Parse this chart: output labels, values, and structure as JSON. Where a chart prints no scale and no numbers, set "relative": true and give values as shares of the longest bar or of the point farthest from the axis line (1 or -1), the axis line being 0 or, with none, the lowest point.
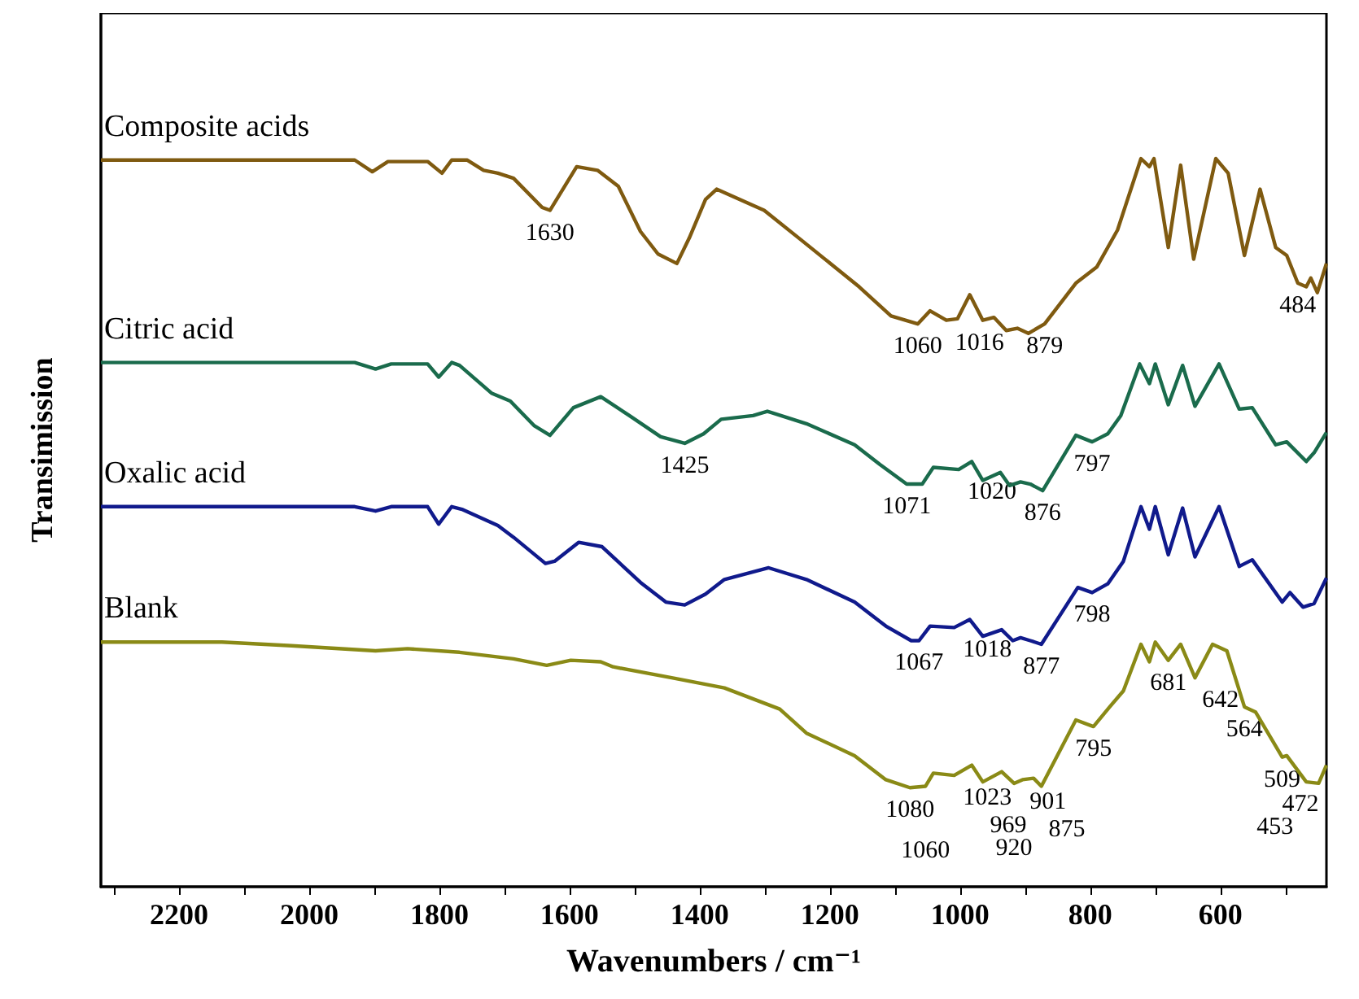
{
  "chart_data": {
    "type": "line",
    "relative": true,
    "xlabel": "Wavenumbers / cm⁻¹",
    "ylabel": "Transimission",
    "grid": false,
    "xlim": [
      2320,
      437
    ],
    "xticks": [
      {
        "value": 2300,
        "label": null
      },
      2200,
      {
        "value": 2100,
        "label": null
      },
      2000,
      {
        "value": 1900,
        "label": null
      },
      1800,
      {
        "value": 1700,
        "label": null
      },
      1600,
      {
        "value": 1500,
        "label": null
      },
      1400,
      {
        "value": 1300,
        "label": null
      },
      1200,
      {
        "value": 1100,
        "label": null
      },
      1000,
      {
        "value": 900,
        "label": null
      },
      800,
      {
        "value": 700,
        "label": null
      },
      600,
      {
        "value": 500,
        "label": null
      }
    ],
    "series": [
      {
        "name": "Composite acids",
        "color": "#7f5a10",
        "x": [
          2320,
          1930,
          1903,
          1879,
          1818,
          1796,
          1781,
          1757,
          1732,
          1710,
          1686,
          1642,
          1630,
          1589,
          1557,
          1525,
          1491,
          1464,
          1435,
          1416,
          1391,
          1374,
          1301,
          1245,
          1155,
          1106,
          1065,
          1046,
          1021,
          1004,
          985,
          965,
          948,
          929,
          912,
          895,
          870,
          822,
          790,
          758,
          722,
          709,
          702,
          680,
          661,
          641,
          607,
          588,
          563,
          539,
          515,
          498,
          481,
          468,
          461,
          451,
          437
        ],
        "values": [
          0.998,
          0.998,
          0.982,
          0.996,
          0.996,
          0.98,
          0.998,
          0.998,
          0.984,
          0.98,
          0.973,
          0.933,
          0.929,
          0.989,
          0.984,
          0.962,
          0.9,
          0.869,
          0.856,
          0.891,
          0.944,
          0.958,
          0.929,
          0.889,
          0.824,
          0.784,
          0.773,
          0.791,
          0.778,
          0.78,
          0.813,
          0.778,
          0.782,
          0.764,
          0.767,
          0.76,
          0.773,
          0.829,
          0.851,
          0.902,
          1,
          0.989,
          1,
          0.878,
          0.991,
          0.862,
          1,
          0.98,
          0.867,
          0.958,
          0.878,
          0.867,
          0.829,
          0.824,
          0.836,
          0.816,
          0.856
        ]
      },
      {
        "name": "Citric acid",
        "color": "#1a6b4c",
        "x": [
          2320,
          1930,
          1898,
          1874,
          1818,
          1801,
          1781,
          1769,
          1720,
          1691,
          1654,
          1630,
          1594,
          1552,
          1508,
          1460,
          1423,
          1394,
          1367,
          1318,
          1296,
          1236,
          1162,
          1123,
          1082,
          1058,
          1041,
          1002,
          982,
          965,
          938,
          924,
          907,
          892,
          873,
          822,
          797,
          773,
          753,
          724,
          709,
          700,
          680,
          658,
          639,
          602,
          571,
          551,
          515,
          498,
          468,
          456,
          437
        ],
        "values": [
          0.72,
          0.72,
          0.711,
          0.718,
          0.718,
          0.7,
          0.72,
          0.716,
          0.678,
          0.667,
          0.633,
          0.62,
          0.658,
          0.673,
          0.647,
          0.618,
          0.609,
          0.622,
          0.642,
          0.647,
          0.653,
          0.636,
          0.607,
          0.58,
          0.553,
          0.553,
          0.576,
          0.573,
          0.584,
          0.558,
          0.569,
          0.551,
          0.556,
          0.553,
          0.544,
          0.62,
          0.611,
          0.622,
          0.647,
          0.718,
          0.691,
          0.718,
          0.662,
          0.716,
          0.66,
          0.718,
          0.656,
          0.658,
          0.607,
          0.611,
          0.584,
          0.596,
          0.624
        ]
      },
      {
        "name": "Oxalic acid",
        "color": "#101a8c",
        "x": [
          2320,
          1930,
          1898,
          1874,
          1818,
          1801,
          1781,
          1764,
          1710,
          1686,
          1637,
          1623,
          1586,
          1550,
          1491,
          1452,
          1423,
          1391,
          1362,
          1294,
          1236,
          1162,
          1114,
          1075,
          1063,
          1046,
          1009,
          985,
          965,
          936,
          919,
          907,
          892,
          875,
          819,
          797,
          773,
          749,
          722,
          709,
          700,
          680,
          658,
          639,
          602,
          571,
          551,
          505,
          493,
          473,
          456,
          437
        ],
        "values": [
          0.522,
          0.522,
          0.516,
          0.522,
          0.522,
          0.498,
          0.522,
          0.518,
          0.496,
          0.48,
          0.444,
          0.447,
          0.473,
          0.467,
          0.418,
          0.391,
          0.387,
          0.402,
          0.422,
          0.438,
          0.422,
          0.391,
          0.358,
          0.338,
          0.338,
          0.358,
          0.356,
          0.367,
          0.344,
          0.353,
          0.338,
          0.342,
          0.338,
          0.333,
          0.411,
          0.404,
          0.416,
          0.447,
          0.522,
          0.491,
          0.522,
          0.456,
          0.52,
          0.453,
          0.522,
          0.44,
          0.449,
          0.391,
          0.404,
          0.384,
          0.389,
          0.424
        ]
      },
      {
        "name": "Blank",
        "color": "#8a8a16",
        "x": [
          2320,
          2134,
          2027,
          1898,
          1849,
          1769,
          1686,
          1635,
          1598,
          1552,
          1533,
          1443,
          1362,
          1277,
          1236,
          1162,
          1114,
          1077,
          1053,
          1041,
          1009,
          982,
          965,
          936,
          917,
          904,
          887,
          875,
          822,
          795,
          770,
          749,
          722,
          709,
          700,
          680,
          661,
          639,
          612,
          590,
          563,
          546,
          505,
          498,
          468,
          449,
          437
        ],
        "values": [
          0.336,
          0.336,
          0.331,
          0.324,
          0.327,
          0.322,
          0.313,
          0.304,
          0.311,
          0.309,
          0.302,
          0.287,
          0.273,
          0.244,
          0.211,
          0.18,
          0.147,
          0.136,
          0.138,
          0.156,
          0.153,
          0.167,
          0.144,
          0.158,
          0.142,
          0.147,
          0.149,
          0.138,
          0.229,
          0.22,
          0.247,
          0.269,
          0.333,
          0.309,
          0.336,
          0.311,
          0.333,
          0.287,
          0.333,
          0.324,
          0.247,
          0.24,
          0.178,
          0.18,
          0.144,
          0.142,
          0.167
        ]
      }
    ],
    "annotations": [
      {
        "text": "1630",
        "x": 1630,
        "y": 0.929
      },
      {
        "text": "1060",
        "x": 1065,
        "y": 0.773
      },
      {
        "text": "1016",
        "x": 1021,
        "y": 0.778
      },
      {
        "text": "879",
        "x": 870,
        "y": 0.773
      },
      {
        "text": "484",
        "x": 481,
        "y": 0.829
      },
      {
        "text": "1425",
        "x": 1423,
        "y": 0.609
      },
      {
        "text": "1071",
        "x": 1082,
        "y": 0.553
      },
      {
        "text": "1020",
        "x": 1002,
        "y": 0.573
      },
      {
        "text": "876",
        "x": 873,
        "y": 0.544
      },
      {
        "text": "797",
        "x": 797,
        "y": 0.611
      },
      {
        "text": "798",
        "x": 797,
        "y": 0.404
      },
      {
        "text": "1067",
        "x": 1063,
        "y": 0.338
      },
      {
        "text": "1018",
        "x": 1009,
        "y": 0.356
      },
      {
        "text": "877",
        "x": 875,
        "y": 0.333
      },
      {
        "text": "1080",
        "x": 1077,
        "y": 0.136
      },
      {
        "text": "1060",
        "x": 1053,
        "y": 0.138
      },
      {
        "text": "1023",
        "x": 1009,
        "y": 0.153
      },
      {
        "text": "969",
        "x": 965,
        "y": 0.144
      },
      {
        "text": "920",
        "x": 917,
        "y": 0.142
      },
      {
        "text": "901",
        "x": 904,
        "y": 0.147
      },
      {
        "text": "875",
        "x": 875,
        "y": 0.138
      },
      {
        "text": "795",
        "x": 795,
        "y": 0.22
      },
      {
        "text": "681",
        "x": 680,
        "y": 0.311
      },
      {
        "text": "642",
        "x": 639,
        "y": 0.287
      },
      {
        "text": "564",
        "x": 563,
        "y": 0.247
      },
      {
        "text": "509",
        "x": 505,
        "y": 0.178
      },
      {
        "text": "472",
        "x": 468,
        "y": 0.144
      },
      {
        "text": "453",
        "x": 449,
        "y": 0.142
      }
    ]
  }
}
